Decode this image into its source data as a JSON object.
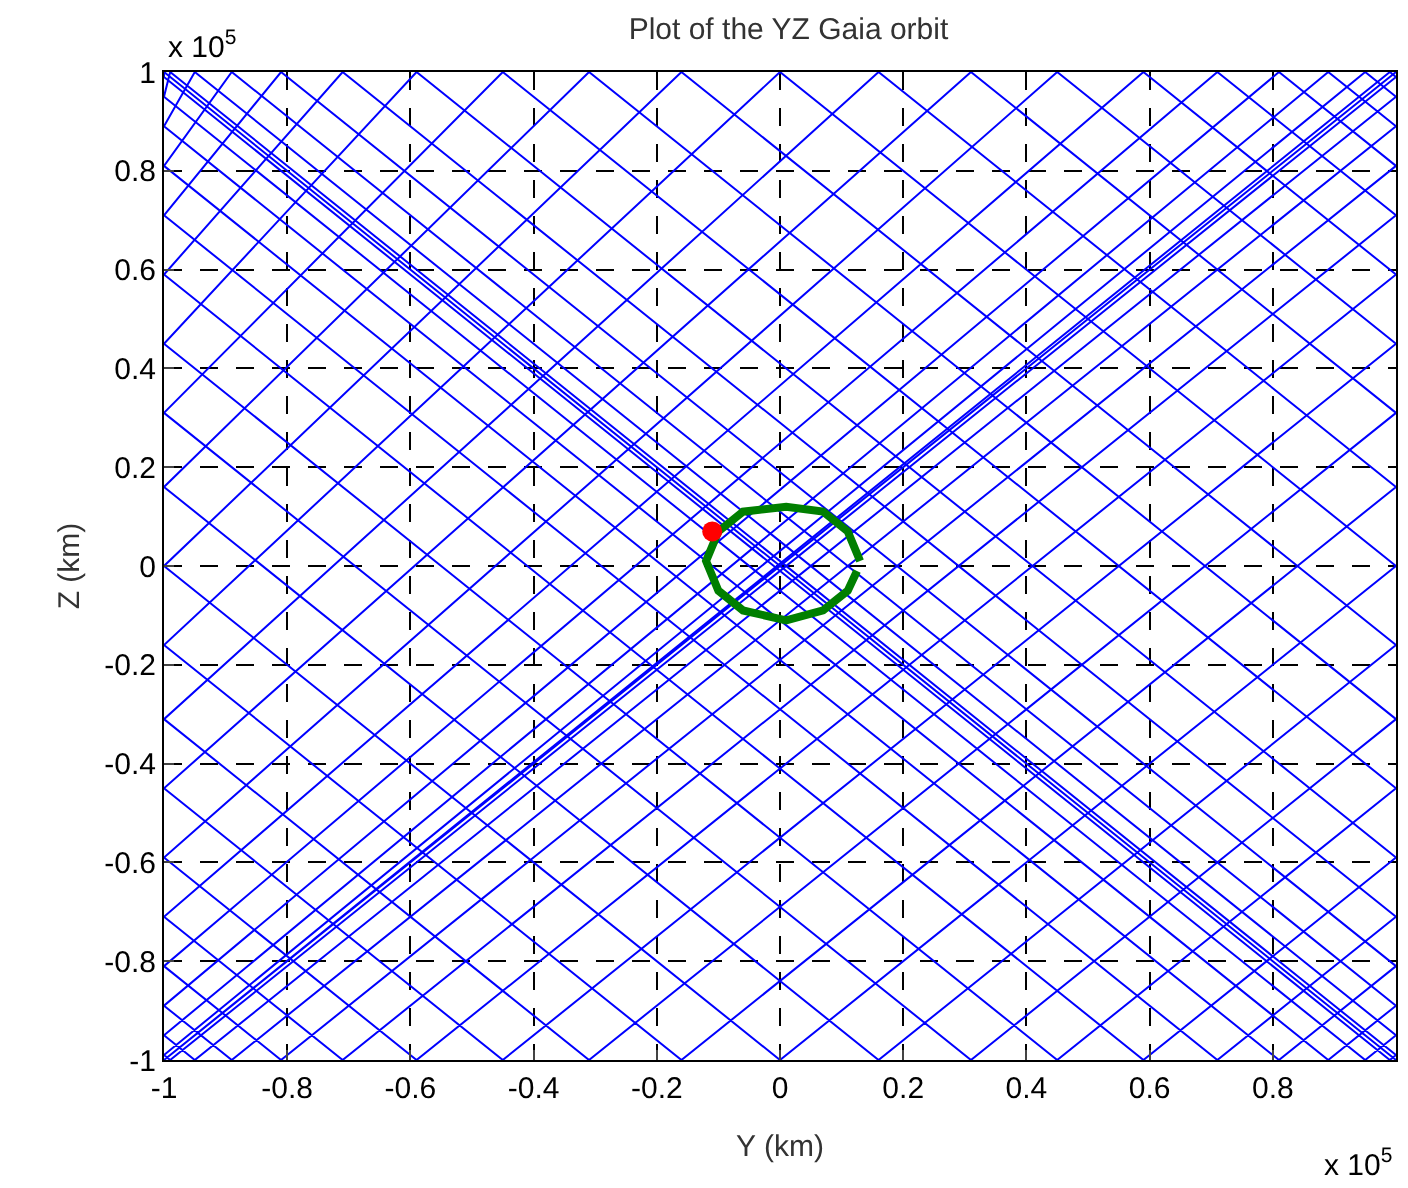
{
  "chart_data": {
    "type": "line",
    "title": "Plot of the YZ Gaia orbit",
    "xlabel": "Y (km)",
    "ylabel": "Z (km)",
    "annotations": [
      "x 10$^{5}$",
      "x 10$^{5}$"
    ],
    "xlim": [
      -1,
      1
    ],
    "ylim": [
      -1,
      1
    ],
    "xticks": [
      -1,
      -0.8,
      -0.6,
      -0.4,
      -0.2,
      0,
      0.2,
      0.4,
      0.6,
      0.8,
      {
        "value": 1,
        "label": null
      }
    ],
    "yticks": [
      -1,
      -0.8,
      -0.6,
      -0.4,
      -0.2,
      0,
      0.2,
      0.4,
      0.6,
      0.8,
      1
    ],
    "grid": true,
    "line_style": "solid",
    "series": [
      {
        "color": "#0000ff",
        "x": [
          1,
          1,
          -1,
          -1,
          0.99,
          1,
          -0.99,
          -1,
          0.95,
          1,
          -0.95,
          -1,
          0.89,
          1,
          -0.89,
          -1,
          0.81,
          1,
          -0.81,
          -1,
          0.71,
          1,
          -0.71,
          -1,
          0.59,
          1,
          -0.59,
          -1,
          0.45,
          1,
          -0.45,
          -1,
          0.31,
          1,
          -0.31,
          -1,
          0.16,
          1,
          -0.16,
          -1,
          0,
          1,
          0,
          -1,
          -0.16,
          1,
          0.16,
          -1,
          -0.31,
          1,
          0.31,
          -1,
          -0.45,
          1,
          0.45,
          -1,
          -0.59,
          1,
          0.59,
          -1,
          -0.71,
          1,
          0.71,
          -1,
          -0.81,
          1,
          0.81,
          -1,
          -0.89,
          1,
          0.89,
          -1,
          -0.95,
          1,
          0.95,
          -1,
          -0.99,
          1,
          0.99,
          -1,
          -1,
          1,
          1,
          -1
        ],
        "values": [
          1,
          1,
          -1,
          -1,
          1,
          0.99,
          -1,
          -0.99,
          1,
          0.95,
          -1,
          -0.95,
          1,
          0.89,
          -1,
          -0.89,
          1,
          0.81,
          -1,
          -0.81,
          1,
          0.71,
          -1,
          -0.71,
          1,
          0.59,
          -1,
          -0.59,
          1,
          0.45,
          -1,
          -0.45,
          1,
          0.31,
          -1,
          -0.31,
          1,
          0.16,
          -1,
          -0.16,
          1,
          0,
          -1,
          0,
          1,
          -0.16,
          -1,
          0.16,
          1,
          -0.31,
          -1,
          0.31,
          1,
          -0.45,
          -1,
          0.45,
          1,
          -0.59,
          -1,
          0.59,
          1,
          -0.71,
          -1,
          0.71,
          1,
          -0.81,
          -1,
          0.81,
          1,
          -0.89,
          -1,
          0.89,
          1,
          -0.95,
          -1,
          0.95,
          1,
          -0.99,
          -1,
          0.99,
          1,
          -1,
          -1,
          1
        ]
      },
      {
        "color": "#007f00",
        "type": "line",
        "x": [
          0.13,
          0.11,
          0.07,
          0.01,
          -0.06,
          -0.1,
          -0.12,
          -0.1,
          -0.06,
          0.01,
          0.07,
          0.11,
          0.125
        ],
        "values": [
          0.01,
          0.07,
          0.11,
          0.12,
          0.11,
          0.07,
          0.01,
          -0.05,
          -0.09,
          -0.11,
          -0.09,
          -0.05,
          -0.01
        ]
      },
      {
        "type": "scatter",
        "color": "#ff0000",
        "marker": "circle",
        "x": [
          -0.11
        ],
        "values": [
          0.07
        ]
      }
    ]
  }
}
